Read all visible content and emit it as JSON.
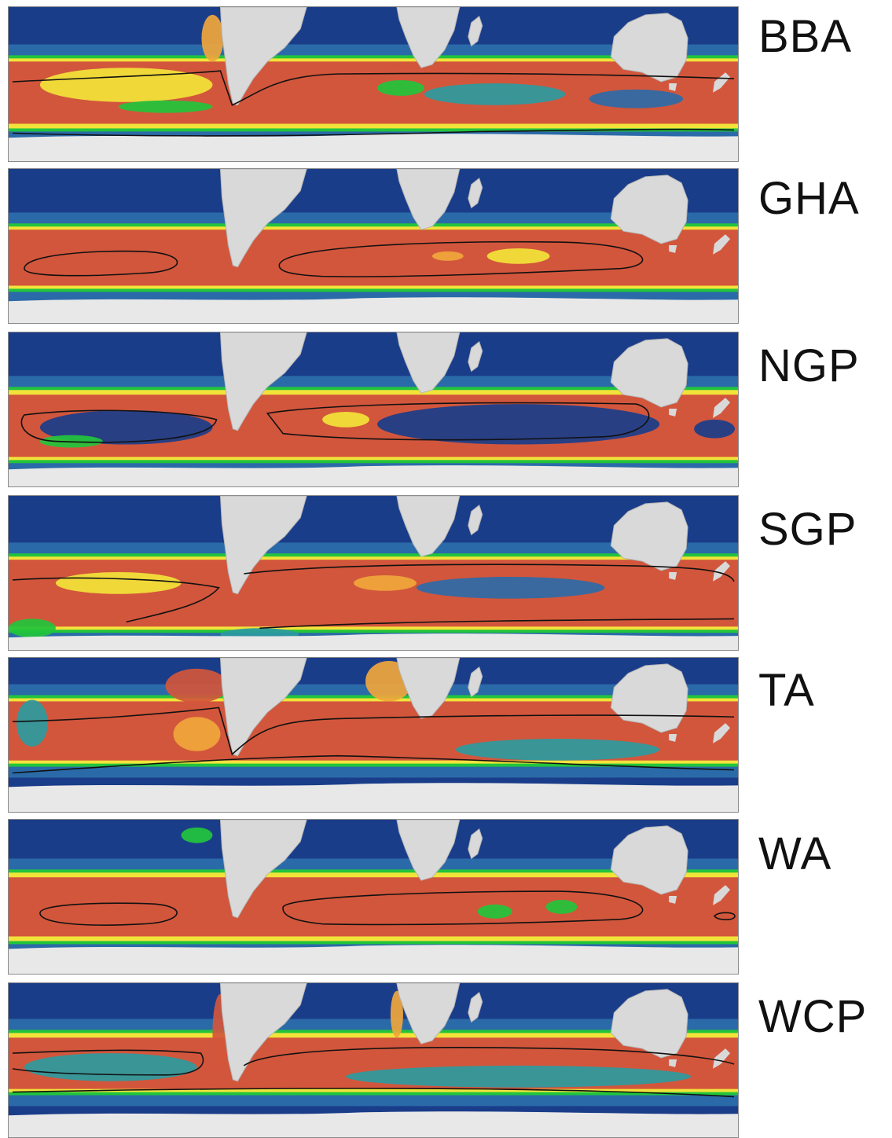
{
  "figure": {
    "colors": {
      "ocean_low": "#1a3d8a",
      "ocean_mid": "#2b6aa8",
      "teal": "#2c9aa0",
      "green": "#22c43c",
      "yellow": "#f2e33a",
      "orange": "#f0a63c",
      "red": "#d2563c",
      "land": "#d9d9d9",
      "ice": "#e8e8e8",
      "contour": "#111111"
    },
    "panels": [
      {
        "id": "bba",
        "label": "BBA"
      },
      {
        "id": "gha",
        "label": "GHA"
      },
      {
        "id": "ngp",
        "label": "NGP"
      },
      {
        "id": "sgp",
        "label": "SGP"
      },
      {
        "id": "ta",
        "label": "TA"
      },
      {
        "id": "wa",
        "label": "WA"
      },
      {
        "id": "wcp",
        "label": "WCP"
      }
    ]
  }
}
